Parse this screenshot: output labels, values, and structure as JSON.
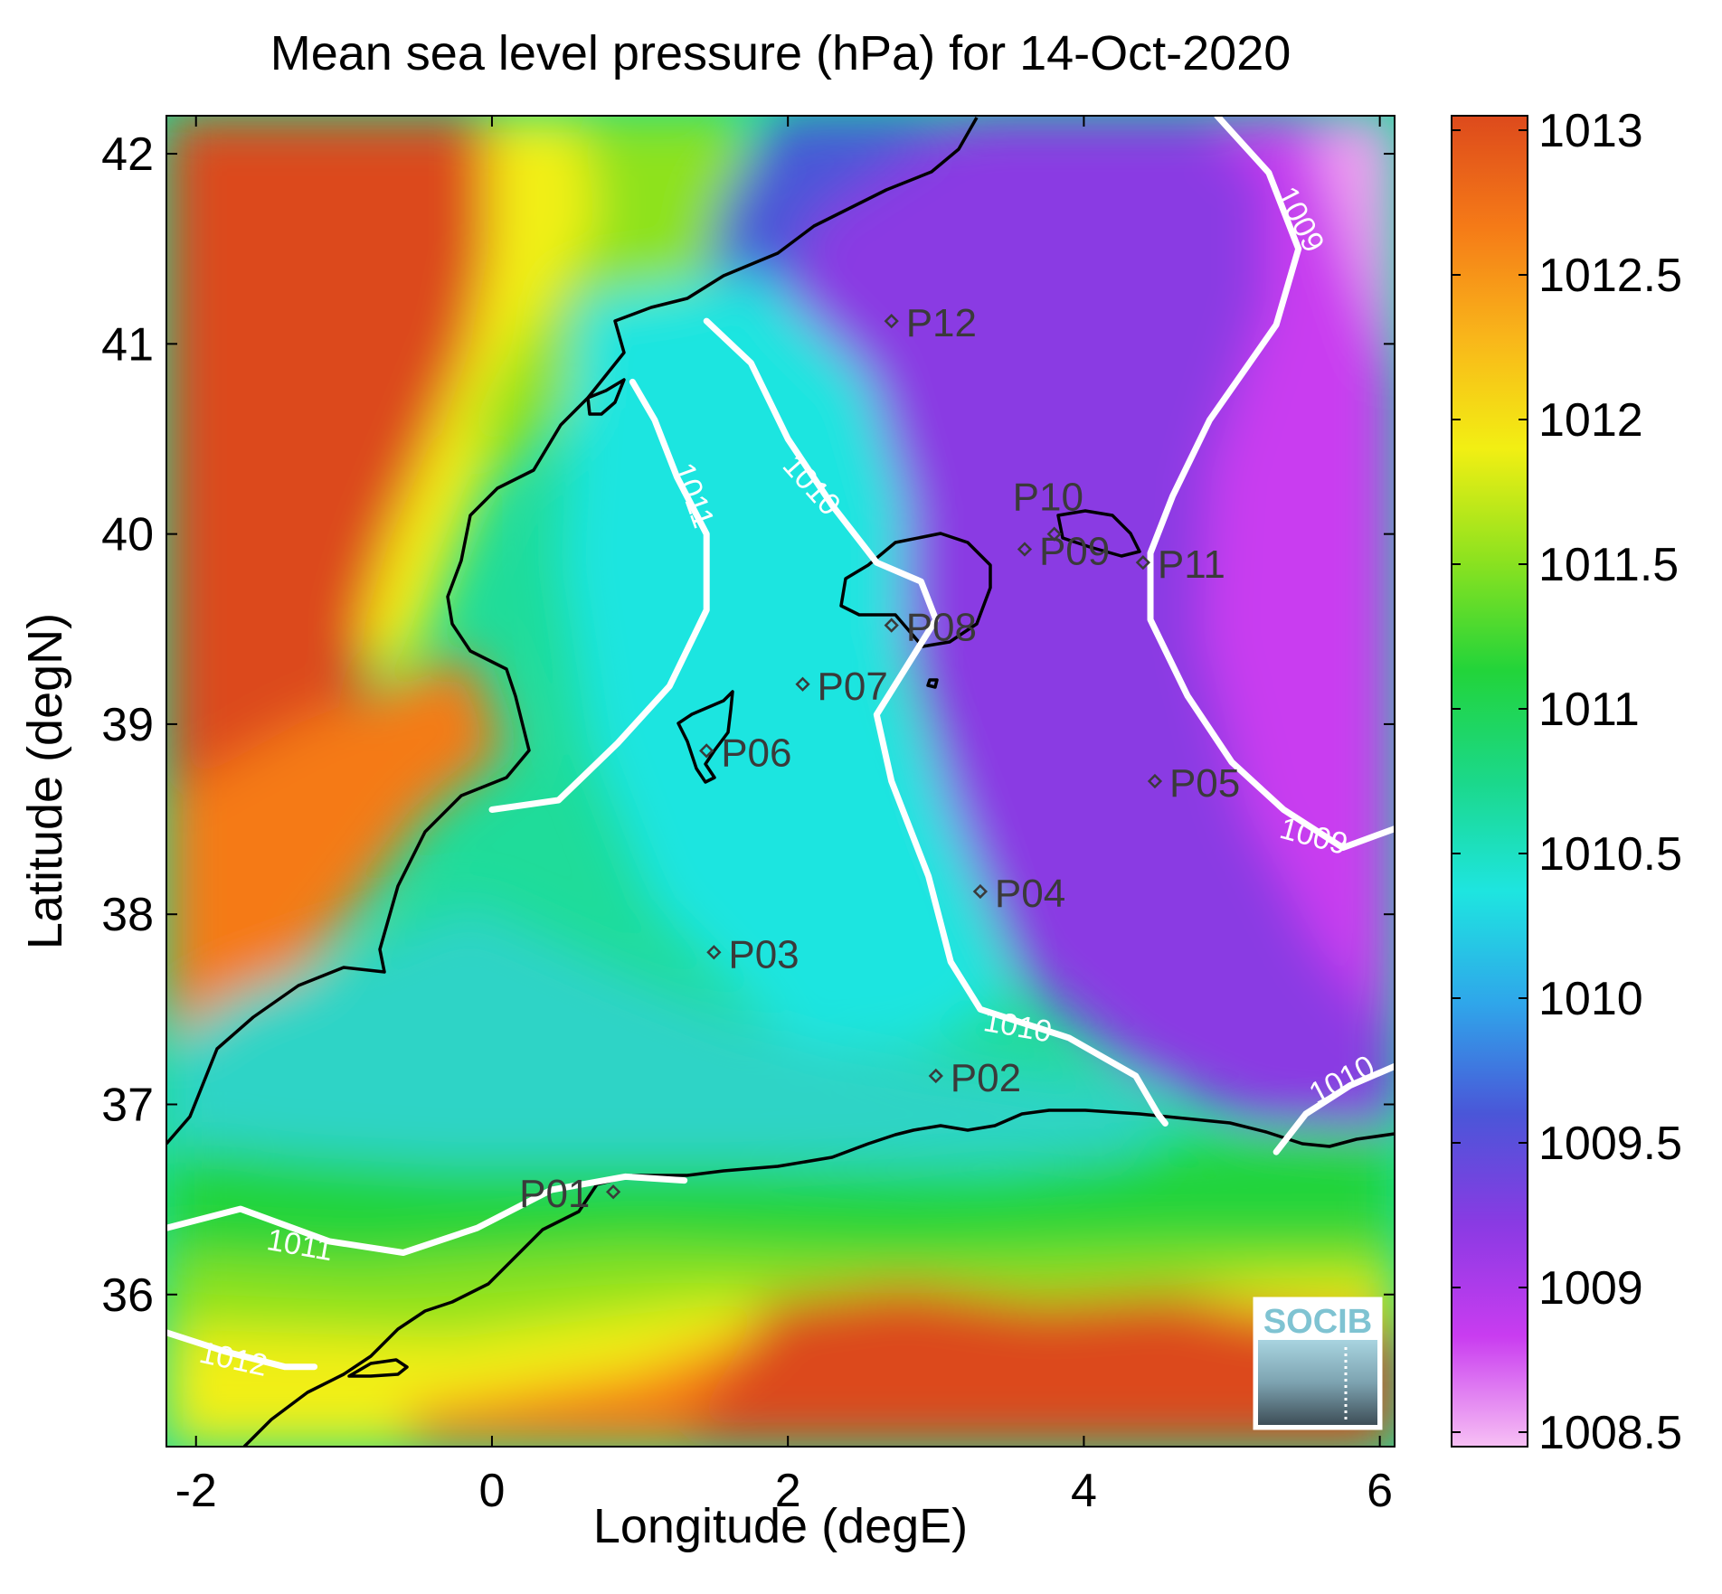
{
  "title": "Mean sea level pressure (hPa) for 14-Oct-2020",
  "xlabel": "Longitude (degE)",
  "ylabel": "Latitude (degN)",
  "map": {
    "lon_range": [
      -2.2,
      6.1
    ],
    "lat_range": [
      35.2,
      42.2
    ],
    "x_ticks": [
      {
        "value": -2,
        "label": "-2"
      },
      {
        "value": 0,
        "label": "0"
      },
      {
        "value": 2,
        "label": "2"
      },
      {
        "value": 4,
        "label": "4"
      },
      {
        "value": 6,
        "label": "6"
      }
    ],
    "y_ticks": [
      {
        "value": 36,
        "label": "36"
      },
      {
        "value": 37,
        "label": "37"
      },
      {
        "value": 38,
        "label": "38"
      },
      {
        "value": 39,
        "label": "39"
      },
      {
        "value": 40,
        "label": "40"
      },
      {
        "value": 41,
        "label": "41"
      },
      {
        "value": 42,
        "label": "42"
      }
    ]
  },
  "colorbar": {
    "range": [
      1008.45,
      1013.05
    ],
    "ticks": [
      {
        "value": 1013,
        "label": "1013"
      },
      {
        "value": 1012.5,
        "label": "1012.5"
      },
      {
        "value": 1012,
        "label": "1012"
      },
      {
        "value": 1011.5,
        "label": "1011.5"
      },
      {
        "value": 1011,
        "label": "1011"
      },
      {
        "value": 1010.5,
        "label": "1010.5"
      },
      {
        "value": 1010,
        "label": "1010"
      },
      {
        "value": 1009.5,
        "label": "1009.5"
      },
      {
        "value": 1009,
        "label": "1009"
      },
      {
        "value": 1008.5,
        "label": "1008.5"
      }
    ],
    "colormap": [
      "#f7c0f4",
      "#c93cf0",
      "#8a3ae3",
      "#4a56d8",
      "#2fa6ea",
      "#1ee5e0",
      "#1bd88a",
      "#22d43a",
      "#8ee21f",
      "#f2ef13",
      "#f9b61a",
      "#f57a17",
      "#dd4a1c"
    ]
  },
  "stations": [
    {
      "label": "P01",
      "lon": 0.82,
      "lat": 36.54
    },
    {
      "label": "P02",
      "lon": 3.0,
      "lat": 37.15
    },
    {
      "label": "P03",
      "lon": 1.5,
      "lat": 37.8
    },
    {
      "label": "P04",
      "lon": 3.3,
      "lat": 38.12
    },
    {
      "label": "P05",
      "lon": 4.48,
      "lat": 38.7
    },
    {
      "label": "P06",
      "lon": 1.45,
      "lat": 38.86
    },
    {
      "label": "P07",
      "lon": 2.1,
      "lat": 39.21
    },
    {
      "label": "P08",
      "lon": 2.7,
      "lat": 39.52
    },
    {
      "label": "P09",
      "lon": 3.6,
      "lat": 39.92
    },
    {
      "label": "P10",
      "lon": 3.8,
      "lat": 40.0
    },
    {
      "label": "P11",
      "lon": 4.4,
      "lat": 39.85
    },
    {
      "label": "P12",
      "lon": 2.7,
      "lat": 41.12
    }
  ],
  "contours": [
    {
      "level": 1009,
      "label": "1009",
      "points": [
        [
          4.9,
          42.2
        ],
        [
          5.25,
          41.9
        ],
        [
          5.45,
          41.5
        ],
        [
          5.3,
          41.1
        ],
        [
          4.85,
          40.6
        ],
        [
          4.6,
          40.2
        ],
        [
          4.45,
          39.9
        ],
        [
          4.45,
          39.55
        ],
        [
          4.7,
          39.15
        ],
        [
          5.0,
          38.8
        ],
        [
          5.35,
          38.55
        ],
        [
          5.75,
          38.35
        ],
        [
          6.1,
          38.45
        ]
      ],
      "labels": [
        {
          "text": "1009",
          "lon": 5.45,
          "lat": 41.65,
          "angle": 63
        },
        {
          "text": "1009",
          "lon": 5.55,
          "lat": 38.4,
          "angle": 15
        }
      ]
    },
    {
      "level": 1010,
      "label": "1010",
      "points": [
        [
          1.45,
          41.12
        ],
        [
          1.75,
          40.9
        ],
        [
          2.0,
          40.5
        ],
        [
          2.3,
          40.15
        ],
        [
          2.6,
          39.85
        ],
        [
          2.9,
          39.75
        ],
        [
          3.0,
          39.55
        ],
        [
          2.8,
          39.3
        ],
        [
          2.6,
          39.05
        ],
        [
          2.7,
          38.7
        ],
        [
          2.95,
          38.2
        ],
        [
          3.1,
          37.75
        ],
        [
          3.3,
          37.5
        ],
        [
          3.9,
          37.35
        ],
        [
          4.35,
          37.15
        ],
        [
          4.5,
          36.95
        ],
        [
          4.55,
          36.9
        ]
      ],
      "labels": [
        {
          "text": "1010",
          "lon": 2.15,
          "lat": 40.25,
          "angle": 48
        },
        {
          "text": "1010",
          "lon": 3.55,
          "lat": 37.4,
          "angle": 10
        }
      ]
    },
    {
      "level": 1010,
      "label": "1010",
      "points": [
        [
          5.3,
          36.75
        ],
        [
          5.5,
          36.95
        ],
        [
          5.8,
          37.1
        ],
        [
          6.1,
          37.2
        ]
      ],
      "labels": [
        {
          "text": "1010",
          "lon": 5.75,
          "lat": 37.12,
          "angle": -28
        }
      ]
    },
    {
      "level": 1011,
      "label": "1011",
      "points": [
        [
          0.95,
          40.8
        ],
        [
          1.1,
          40.6
        ],
        [
          1.25,
          40.3
        ],
        [
          1.45,
          40.0
        ],
        [
          1.45,
          39.6
        ],
        [
          1.2,
          39.2
        ],
        [
          0.85,
          38.9
        ],
        [
          0.45,
          38.6
        ],
        [
          0.0,
          38.55
        ]
      ],
      "labels": [
        {
          "text": "1011",
          "lon": 1.35,
          "lat": 40.2,
          "angle": 70
        }
      ]
    },
    {
      "level": 1011,
      "label": "1011",
      "points": [
        [
          -2.2,
          36.35
        ],
        [
          -1.7,
          36.45
        ],
        [
          -1.1,
          36.28
        ],
        [
          -0.6,
          36.22
        ],
        [
          -0.1,
          36.35
        ],
        [
          0.4,
          36.55
        ],
        [
          0.9,
          36.62
        ],
        [
          1.3,
          36.6
        ]
      ],
      "labels": [
        {
          "text": "1011",
          "lon": -1.3,
          "lat": 36.25,
          "angle": 10
        }
      ]
    },
    {
      "level": 1012,
      "label": "1012",
      "points": [
        [
          -2.2,
          35.8
        ],
        [
          -1.8,
          35.7
        ],
        [
          -1.4,
          35.62
        ],
        [
          -1.2,
          35.62
        ]
      ],
      "labels": [
        {
          "text": "1012",
          "lon": -1.75,
          "lat": 35.65,
          "angle": 12
        }
      ]
    }
  ],
  "logo": {
    "text": "SOCIB"
  }
}
